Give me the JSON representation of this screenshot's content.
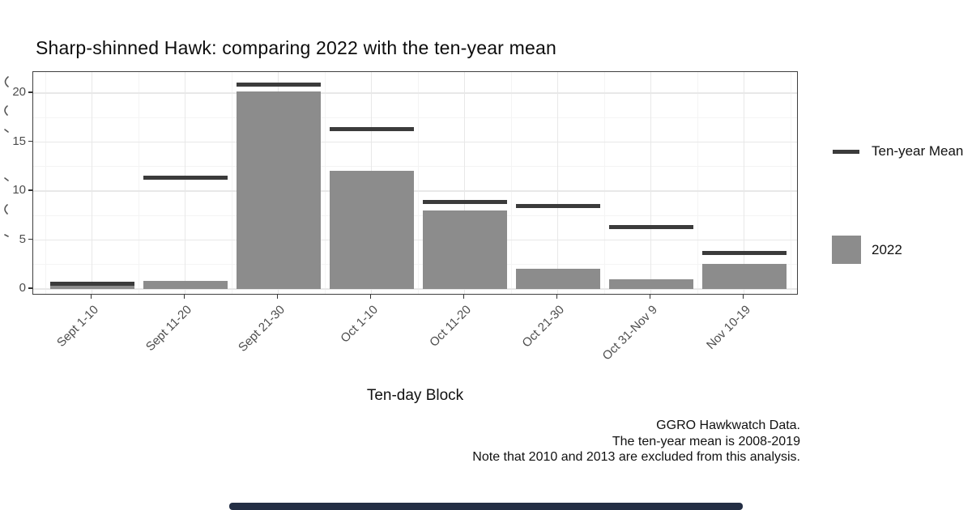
{
  "title": "Sharp-shinned Hawk: comparing 2022 with the ten-year mean",
  "legend": {
    "mean_label": "Ten-year Mean",
    "fill_label": "2022"
  },
  "caption": {
    "line1": "GGRO Hawkwatch Data.",
    "line2": "The ten-year mean is 2008-2019",
    "line3": "Note that 2010 and 2013 are excluded from this analysis."
  },
  "colors": {
    "bar_fill": "#8c8c8c",
    "mean_line": "#3b3b3b",
    "grid_major": "#e8e8e8",
    "grid_minor": "#f4f4f4",
    "panel_border": "#3f3f3f",
    "tick_label": "#4d4d4d",
    "scrollbar": "#232e44"
  },
  "chart_data": {
    "type": "bar",
    "title": "Sharp-shinned Hawk: comparing 2022 with the ten-year mean",
    "xlabel": "Ten-day Block",
    "ylabel": "",
    "categories": [
      "Sept 1-10",
      "Sept 11-20",
      "Sept 21-30",
      "Oct 1-10",
      "Oct 11-20",
      "Oct 21-30",
      "Oct 31-Nov 9",
      "Nov 10-19"
    ],
    "series": [
      {
        "name": "2022",
        "type": "bar",
        "values": [
          0.5,
          0.8,
          20.2,
          12.1,
          8.0,
          2.1,
          1.0,
          2.6
        ]
      },
      {
        "name": "Ten-year Mean",
        "type": "line-segment",
        "values": [
          0.55,
          11.4,
          20.9,
          16.3,
          8.9,
          8.5,
          6.3,
          3.7
        ]
      }
    ],
    "y_ticks": [
      0,
      5,
      10,
      15,
      20
    ],
    "y_minor_ticks": [
      2.5,
      7.5,
      12.5,
      17.5
    ],
    "ylim": [
      -0.7,
      22
    ],
    "grid": true,
    "legend_position": "right",
    "caption": "GGRO Hawkwatch Data. The ten-year mean is 2008-2019 Note that 2010 and 2013 are excluded from this analysis."
  }
}
